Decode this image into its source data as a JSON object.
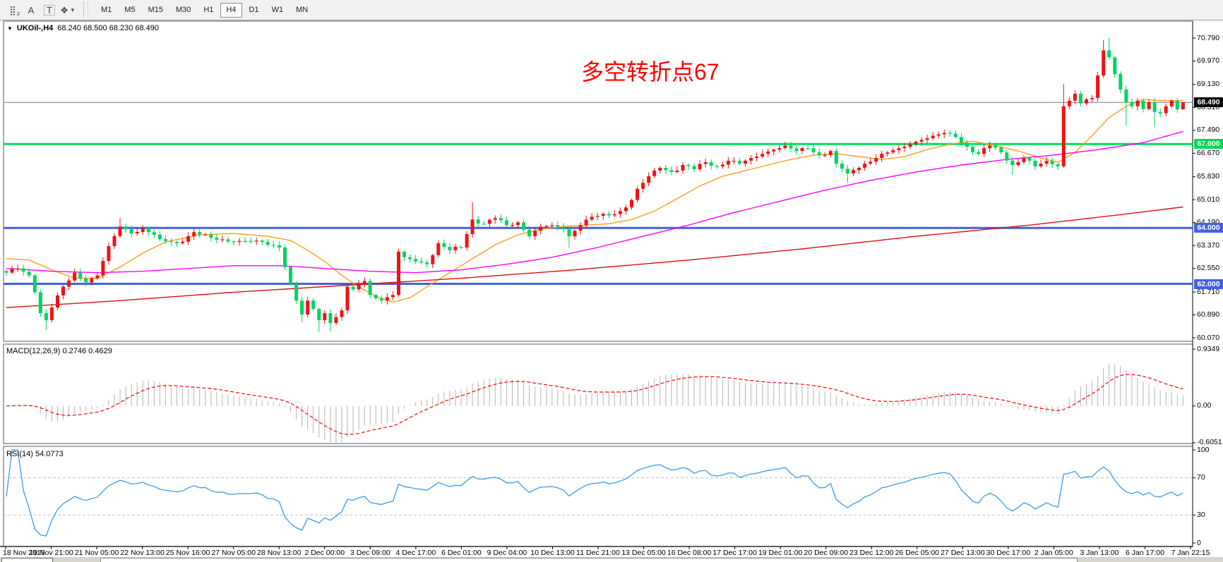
{
  "toolbar": {
    "icons": [
      {
        "name": "dotted-grid-icon",
        "glyph": "⣿",
        "badge": "F"
      },
      {
        "name": "text-a-icon",
        "glyph": "A",
        "badge": ""
      },
      {
        "name": "text-box-icon",
        "glyph": "T",
        "badge": "",
        "boxed": true
      },
      {
        "name": "arrange-objects-icon",
        "glyph": "❖",
        "badge": "",
        "caret": "▼"
      }
    ],
    "timeframes": [
      {
        "label": "M1",
        "active": false
      },
      {
        "label": "M5",
        "active": false
      },
      {
        "label": "M15",
        "active": false
      },
      {
        "label": "M30",
        "active": false
      },
      {
        "label": "H1",
        "active": false
      },
      {
        "label": "H4",
        "active": true
      },
      {
        "label": "D1",
        "active": false
      },
      {
        "label": "W1",
        "active": false
      },
      {
        "label": "MN",
        "active": false
      }
    ]
  },
  "chart": {
    "title": "UKOil-,H4",
    "ohlc_text": "68.240 68.500 68.230 68.490",
    "dropdown_glyph": "▼",
    "annotation": {
      "text": "多空转折点67",
      "color": "#ff0000"
    },
    "macd_label": "MACD(12,26,9) 0.2746 0.4629",
    "rsi_label": "RSI(14) 54.0773"
  },
  "chart_data": {
    "type": "candlestick",
    "symbol": "UKOil-",
    "timeframe": "H4",
    "current_ohlc": {
      "open": 68.24,
      "high": 68.5,
      "low": 68.23,
      "close": 68.49
    },
    "price_top": 70.79,
    "price_bottom": 60.07,
    "y_axis_ticks": [
      "70.790",
      "69.970",
      "69.130",
      "68.310",
      "67.490",
      "66.670",
      "65.830",
      "65.010",
      "64.190",
      "63.370",
      "62.550",
      "61.710",
      "60.890",
      "60.070"
    ],
    "x_axis_labels": [
      "18 Nov 2019",
      "19 Nov 21:00",
      "21 Nov 05:00",
      "22 Nov 13:00",
      "25 Nov 16:00",
      "27 Nov 05:00",
      "28 Nov 13:00",
      "2 Dec 00:00",
      "3 Dec 09:00",
      "4 Dec 17:00",
      "6 Dec 01:00",
      "9 Dec 04:00",
      "10 Dec 13:00",
      "11 Dec 21:00",
      "13 Dec 05:00",
      "16 Dec 08:00",
      "17 Dec 17:00",
      "19 Dec 01:00",
      "20 Dec 09:00",
      "23 Dec 12:00",
      "26 Dec 05:00",
      "27 Dec 13:00",
      "30 Dec 17:00",
      "2 Jan 05:00",
      "3 Jan 13:00",
      "6 Jan 17:00",
      "7 Jan 22:15"
    ],
    "bars": 208,
    "candle_up_color": "#ee1414",
    "candle_down_color": "#00d45f",
    "close_keyframes": [
      [
        0,
        62.4
      ],
      [
        2,
        62.55
      ],
      [
        4,
        62.3
      ],
      [
        5,
        61.7
      ],
      [
        6,
        60.95
      ],
      [
        7,
        60.7
      ],
      [
        8,
        61.15
      ],
      [
        10,
        61.9
      ],
      [
        12,
        62.4
      ],
      [
        14,
        62.05
      ],
      [
        16,
        62.3
      ],
      [
        18,
        63.35
      ],
      [
        20,
        64.05
      ],
      [
        22,
        63.8
      ],
      [
        24,
        64.0
      ],
      [
        27,
        63.6
      ],
      [
        30,
        63.45
      ],
      [
        33,
        63.85
      ],
      [
        36,
        63.65
      ],
      [
        40,
        63.5
      ],
      [
        44,
        63.55
      ],
      [
        48,
        63.3
      ],
      [
        49,
        62.6
      ],
      [
        50,
        62.0
      ],
      [
        51,
        61.4
      ],
      [
        52,
        60.9
      ],
      [
        53,
        61.4
      ],
      [
        54,
        61.1
      ],
      [
        55,
        60.7
      ],
      [
        56,
        60.95
      ],
      [
        57,
        60.6
      ],
      [
        59,
        61.05
      ],
      [
        60,
        61.9
      ],
      [
        61,
        61.8
      ],
      [
        63,
        62.1
      ],
      [
        64,
        61.6
      ],
      [
        66,
        61.4
      ],
      [
        68,
        61.6
      ],
      [
        69,
        63.15
      ],
      [
        70,
        62.95
      ],
      [
        72,
        62.8
      ],
      [
        74,
        62.7
      ],
      [
        76,
        63.45
      ],
      [
        78,
        63.2
      ],
      [
        80,
        63.3
      ],
      [
        82,
        64.3
      ],
      [
        84,
        64.15
      ],
      [
        86,
        64.35
      ],
      [
        88,
        64.1
      ],
      [
        90,
        64.2
      ],
      [
        92,
        63.7
      ],
      [
        94,
        64.05
      ],
      [
        96,
        64.1
      ],
      [
        98,
        63.95
      ],
      [
        99,
        63.7
      ],
      [
        100,
        63.9
      ],
      [
        101,
        64.1
      ],
      [
        103,
        64.4
      ],
      [
        106,
        64.45
      ],
      [
        108,
        64.6
      ],
      [
        110,
        65.0
      ],
      [
        111,
        65.4
      ],
      [
        113,
        65.85
      ],
      [
        115,
        66.15
      ],
      [
        117,
        66.0
      ],
      [
        119,
        66.25
      ],
      [
        121,
        66.1
      ],
      [
        123,
        66.35
      ],
      [
        125,
        66.2
      ],
      [
        127,
        66.4
      ],
      [
        129,
        66.3
      ],
      [
        131,
        66.5
      ],
      [
        133,
        66.65
      ],
      [
        135,
        66.8
      ],
      [
        137,
        66.95
      ],
      [
        139,
        66.75
      ],
      [
        141,
        66.85
      ],
      [
        143,
        66.6
      ],
      [
        145,
        66.75
      ],
      [
        146,
        66.3
      ],
      [
        148,
        65.95
      ],
      [
        150,
        66.15
      ],
      [
        151,
        66.3
      ],
      [
        153,
        66.5
      ],
      [
        155,
        66.7
      ],
      [
        157,
        66.85
      ],
      [
        159,
        67.0
      ],
      [
        161,
        67.15
      ],
      [
        163,
        67.3
      ],
      [
        165,
        67.4
      ],
      [
        167,
        67.25
      ],
      [
        169,
        66.9
      ],
      [
        171,
        66.65
      ],
      [
        173,
        66.95
      ],
      [
        175,
        66.7
      ],
      [
        177,
        66.25
      ],
      [
        179,
        66.5
      ],
      [
        181,
        66.2
      ],
      [
        183,
        66.4
      ],
      [
        185,
        66.2
      ],
      [
        186,
        68.35
      ],
      [
        187,
        68.55
      ],
      [
        188,
        68.8
      ],
      [
        189,
        68.45
      ],
      [
        190,
        68.6
      ],
      [
        191,
        68.65
      ],
      [
        192,
        69.45
      ],
      [
        193,
        70.35
      ],
      [
        194,
        70.1
      ],
      [
        195,
        69.5
      ],
      [
        196,
        68.95
      ],
      [
        197,
        68.5
      ],
      [
        198,
        68.35
      ],
      [
        199,
        68.55
      ],
      [
        200,
        68.25
      ],
      [
        201,
        68.5
      ],
      [
        202,
        68.15
      ],
      [
        203,
        68.1
      ],
      [
        204,
        68.35
      ],
      [
        205,
        68.55
      ],
      [
        206,
        68.24
      ],
      [
        207,
        68.49
      ]
    ],
    "wick_overrides": {
      "7": {
        "l": 60.35
      },
      "20": {
        "h": 64.35
      },
      "52": {
        "l": 60.62
      },
      "55": {
        "l": 60.28
      },
      "57": {
        "l": 60.3
      },
      "82": {
        "h": 64.92
      },
      "99": {
        "l": 63.3
      },
      "148": {
        "l": 65.6
      },
      "165": {
        "h": 67.52
      },
      "177": {
        "l": 65.9
      },
      "186": {
        "h": 69.15
      },
      "193": {
        "h": 70.72
      },
      "194": {
        "h": 70.79
      },
      "197": {
        "l": 67.65
      },
      "202": {
        "l": 67.6
      },
      "207": {
        "h": 68.5,
        "l": 68.23
      }
    },
    "horizontal_lines": [
      {
        "price": 68.49,
        "label": "68.490",
        "line_color": "#7d7d7d",
        "tag_bg": "#000000",
        "tag_text": "#ffffff",
        "width": 1,
        "role": "current-price"
      },
      {
        "price": 67.0,
        "label": "67.000",
        "line_color": "#00e05a",
        "tag_bg": "#00d957",
        "tag_text": "#ffffff",
        "width": 3,
        "role": "level"
      },
      {
        "price": 64.0,
        "label": "64.000",
        "line_color": "#4262e0",
        "tag_bg": "#4262e0",
        "tag_text": "#ffffff",
        "width": 3,
        "role": "level"
      },
      {
        "price": 62.0,
        "label": "62.000",
        "line_color": "#4262e0",
        "tag_bg": "#4262e0",
        "tag_text": "#ffffff",
        "width": 3,
        "role": "level"
      }
    ],
    "moving_averages": [
      {
        "name": "fast-ma",
        "color": "#ff9f1a",
        "points": [
          [
            0,
            62.9
          ],
          [
            4,
            62.85
          ],
          [
            8,
            62.5
          ],
          [
            12,
            62.2
          ],
          [
            16,
            62.2
          ],
          [
            20,
            62.6
          ],
          [
            24,
            63.1
          ],
          [
            28,
            63.5
          ],
          [
            34,
            63.75
          ],
          [
            40,
            63.8
          ],
          [
            46,
            63.7
          ],
          [
            50,
            63.55
          ],
          [
            53,
            63.2
          ],
          [
            56,
            62.8
          ],
          [
            59,
            62.3
          ],
          [
            62,
            61.9
          ],
          [
            65,
            61.55
          ],
          [
            68,
            61.35
          ],
          [
            71,
            61.5
          ],
          [
            74,
            61.9
          ],
          [
            78,
            62.4
          ],
          [
            82,
            62.9
          ],
          [
            86,
            63.4
          ],
          [
            90,
            63.75
          ],
          [
            94,
            63.95
          ],
          [
            98,
            64.05
          ],
          [
            102,
            64.1
          ],
          [
            106,
            64.15
          ],
          [
            110,
            64.3
          ],
          [
            114,
            64.6
          ],
          [
            118,
            65.05
          ],
          [
            122,
            65.5
          ],
          [
            126,
            65.85
          ],
          [
            130,
            66.05
          ],
          [
            134,
            66.25
          ],
          [
            138,
            66.45
          ],
          [
            142,
            66.6
          ],
          [
            146,
            66.65
          ],
          [
            150,
            66.55
          ],
          [
            154,
            66.45
          ],
          [
            158,
            66.55
          ],
          [
            162,
            66.8
          ],
          [
            166,
            67.0
          ],
          [
            170,
            67.1
          ],
          [
            174,
            66.95
          ],
          [
            178,
            66.75
          ],
          [
            182,
            66.5
          ],
          [
            185,
            66.35
          ],
          [
            188,
            66.7
          ],
          [
            191,
            67.3
          ],
          [
            194,
            67.95
          ],
          [
            197,
            68.35
          ],
          [
            200,
            68.6
          ],
          [
            203,
            68.55
          ],
          [
            207,
            68.55
          ]
        ]
      },
      {
        "name": "mid-ma",
        "color": "#ff00ff",
        "points": [
          [
            0,
            62.55
          ],
          [
            8,
            62.45
          ],
          [
            16,
            62.4
          ],
          [
            24,
            62.45
          ],
          [
            32,
            62.55
          ],
          [
            40,
            62.65
          ],
          [
            48,
            62.65
          ],
          [
            56,
            62.55
          ],
          [
            64,
            62.45
          ],
          [
            72,
            62.4
          ],
          [
            80,
            62.5
          ],
          [
            88,
            62.7
          ],
          [
            96,
            62.95
          ],
          [
            104,
            63.3
          ],
          [
            112,
            63.7
          ],
          [
            120,
            64.1
          ],
          [
            128,
            64.55
          ],
          [
            136,
            64.95
          ],
          [
            144,
            65.35
          ],
          [
            152,
            65.7
          ],
          [
            160,
            66.0
          ],
          [
            168,
            66.25
          ],
          [
            176,
            66.45
          ],
          [
            184,
            66.6
          ],
          [
            192,
            66.8
          ],
          [
            200,
            67.05
          ],
          [
            207,
            67.45
          ]
        ]
      },
      {
        "name": "slow-ma",
        "color": "#e01010",
        "points": [
          [
            0,
            61.15
          ],
          [
            20,
            61.4
          ],
          [
            40,
            61.7
          ],
          [
            60,
            61.95
          ],
          [
            80,
            62.2
          ],
          [
            100,
            62.5
          ],
          [
            120,
            62.85
          ],
          [
            140,
            63.25
          ],
          [
            160,
            63.7
          ],
          [
            180,
            64.1
          ],
          [
            195,
            64.45
          ],
          [
            207,
            64.75
          ]
        ]
      }
    ],
    "macd": {
      "label": "MACD(12,26,9)",
      "values_text": "0.2746 0.4629",
      "macd_value": 0.2746,
      "signal_value": 0.4629,
      "fast": 12,
      "slow": 26,
      "signal": 9,
      "axis_ticks": [
        "0.9349",
        "0.00",
        "-0.6051"
      ],
      "axis_max": 0.9349,
      "axis_min": -0.6051,
      "histogram_color": "#b5b5b5",
      "signal_color": "#ff0000"
    },
    "rsi": {
      "label": "RSI(14)",
      "value_text": "54.0773",
      "value": 54.0773,
      "period": 14,
      "axis_ticks": [
        "100",
        "70",
        "30",
        "0"
      ],
      "levels": [
        70,
        30
      ],
      "line_color": "#3e9be9",
      "level_line_color": "#c0c0c0"
    }
  }
}
